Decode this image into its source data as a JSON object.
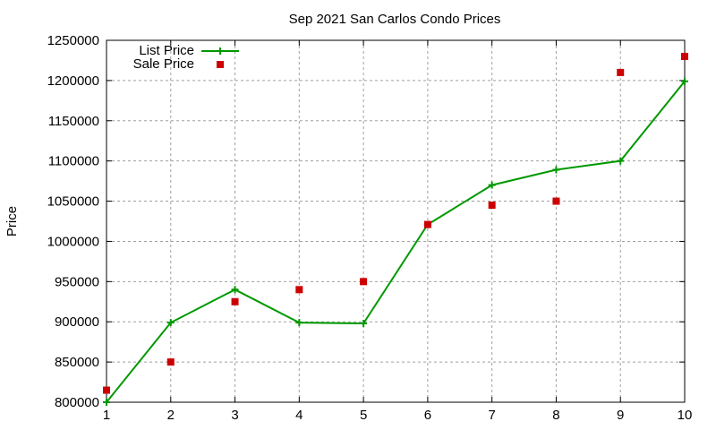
{
  "chart_data": {
    "type": "line",
    "title": "Sep 2021 San Carlos Condo Prices",
    "xlabel": "",
    "ylabel": "Price",
    "x": [
      1,
      2,
      3,
      4,
      5,
      6,
      7,
      8,
      9,
      10
    ],
    "xlim": [
      1,
      10
    ],
    "ylim": [
      800000,
      1250000
    ],
    "xticks": [
      1,
      2,
      3,
      4,
      5,
      6,
      7,
      8,
      9,
      10
    ],
    "yticks": [
      800000,
      850000,
      900000,
      950000,
      1000000,
      1050000,
      1100000,
      1150000,
      1200000,
      1250000
    ],
    "grid": true,
    "legend_position": "top-left",
    "series": [
      {
        "name": "List Price",
        "style": "linespoints",
        "marker": "plus",
        "color": "#009900",
        "values": [
          800000,
          899000,
          940000,
          899000,
          898000,
          1021000,
          1070000,
          1089000,
          1100000,
          1199000
        ]
      },
      {
        "name": "Sale Price",
        "style": "points",
        "marker": "square",
        "color": "#cc0000",
        "values": [
          815000,
          850000,
          925000,
          940000,
          950000,
          1021000,
          1045000,
          1050000,
          1210000,
          1230000
        ]
      }
    ]
  }
}
